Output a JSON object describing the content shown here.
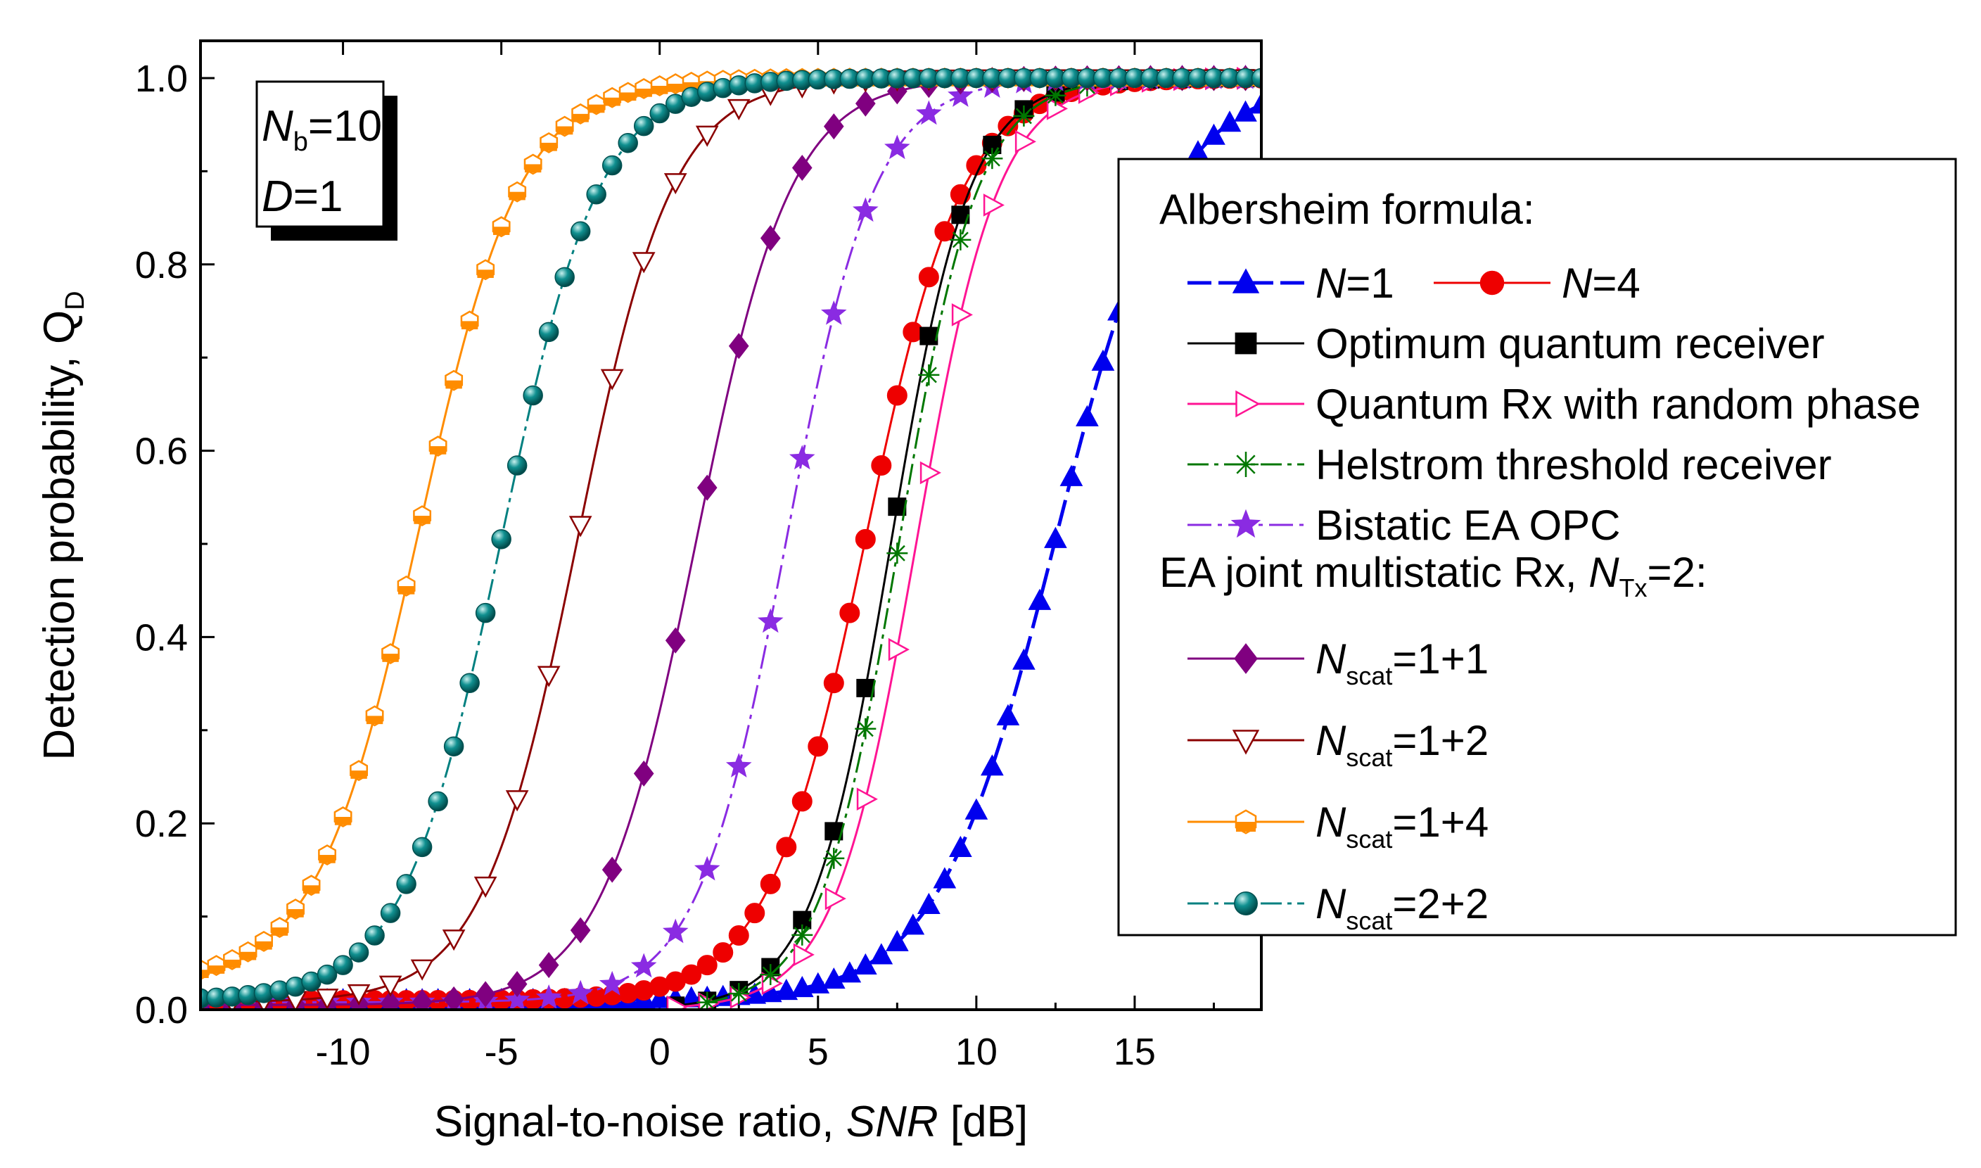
{
  "chart_data": {
    "type": "line",
    "xlabel_prefix": "Signal-to-noise ratio, ",
    "xlabel_italic": "SNR",
    "xlabel_suffix": " [dB]",
    "ylabel_prefix": "Detection probability, Q",
    "ylabel_sub": "D",
    "xlim": [
      -14.5,
      19
    ],
    "ylim": [
      0,
      1.04
    ],
    "xticks": [
      -10,
      -5,
      0,
      5,
      10,
      15
    ],
    "xtick_labels": [
      "-10",
      "-5",
      "0",
      "5",
      "10",
      "15"
    ],
    "yticks": [
      0,
      0.2,
      0.4,
      0.6,
      0.8,
      1.0
    ],
    "ytick_labels": [
      "0.0",
      "0.2",
      "0.4",
      "0.6",
      "0.8",
      "1.0"
    ],
    "grid": false,
    "params_box": {
      "line1_var": "N",
      "line1_sub": "b",
      "line1_val": "=10",
      "line2_var": "D",
      "line2_val": "=1"
    },
    "legend": {
      "header1": "Albersheim formula:",
      "header2_prefix": "EA joint multistatic Rx, ",
      "header2_var": "N",
      "header2_sub": "Tx",
      "header2_suffix": "=2:"
    },
    "series": [
      {
        "key": "n1",
        "name_var": "N",
        "name_val": "=1",
        "color": "#0000ee",
        "marker": "triangle",
        "fill": true,
        "x0": 12.5,
        "s": 1.85,
        "floor": 0.01,
        "xmin": -14.5,
        "xmax": 19,
        "step": 0.5,
        "dash": "38,12"
      },
      {
        "key": "n4",
        "name_var": "N",
        "name_val": "=4",
        "color": "#ee0000",
        "marker": "circle",
        "fill": true,
        "x0": 6.5,
        "s": 1.55,
        "floor": 0.01,
        "xmin": -14.5,
        "xmax": 19,
        "step": 0.5,
        "dash": ""
      },
      {
        "key": "opt",
        "name": "Optimum quantum receiver",
        "color": "#000000",
        "marker": "square",
        "fill": true,
        "x0": 7.3,
        "s": 1.25,
        "floor": 0,
        "xmin": 0.5,
        "xmax": 19,
        "step": 1,
        "dash": ""
      },
      {
        "key": "qrand",
        "name": "Quantum Rx with random phase",
        "color": "#ff1493",
        "marker": "triangle-right",
        "fill": false,
        "x0": 8.1,
        "s": 1.3,
        "floor": 0,
        "xmin": 0.5,
        "xmax": 19,
        "step": 1,
        "dash": ""
      },
      {
        "key": "hel",
        "name": "Helstrom threshold receiver",
        "color": "#007700",
        "marker": "asterisk",
        "fill": false,
        "x0": 7.55,
        "s": 1.25,
        "floor": 0,
        "xmin": 1.5,
        "xmax": 19,
        "step": 1,
        "dash": "30,8,6,8"
      },
      {
        "key": "bist",
        "name": "Bistatic EA OPC",
        "color": "#8a2be2",
        "marker": "star",
        "fill": true,
        "x0": 4.0,
        "s": 1.4,
        "floor": 0.008,
        "xmin": -14.5,
        "xmax": 19,
        "step": 1,
        "dash": "34,9,6,9"
      },
      {
        "key": "s11",
        "name_var": "N",
        "name_sub": "scat",
        "name_val": "=1+1",
        "color": "#800080",
        "marker": "diamond",
        "fill": true,
        "x0": 1.15,
        "s": 1.5,
        "floor": 0.005,
        "xmin": -14.5,
        "xmax": 19,
        "step": 1,
        "dash": ""
      },
      {
        "key": "s12",
        "name_var": "N",
        "name_sub": "scat",
        "name_val": "=1+2",
        "color": "#8b0000",
        "marker": "triangle-down",
        "fill": false,
        "x0": -2.6,
        "s": 1.5,
        "floor": 0.008,
        "xmin": -14.5,
        "xmax": 19,
        "step": 1,
        "dash": ""
      },
      {
        "key": "s14",
        "name_var": "N",
        "name_sub": "scat",
        "name_val": "=1+4",
        "color": "#ff8c00",
        "marker": "hexagon",
        "fill": false,
        "x0": -7.6,
        "s": 1.6,
        "floor": 0.03,
        "xmin": -14.5,
        "xmax": 19,
        "step": 0.5,
        "dash": ""
      },
      {
        "key": "s22",
        "name_var": "N",
        "name_sub": "scat",
        "name_val": "=2+2",
        "color": "#008080",
        "marker": "sphere",
        "fill": true,
        "x0": -5.0,
        "s": 1.55,
        "floor": 0.01,
        "xmin": -14.5,
        "xmax": 19,
        "step": 0.5,
        "dash": "30,8,6,8"
      }
    ]
  }
}
